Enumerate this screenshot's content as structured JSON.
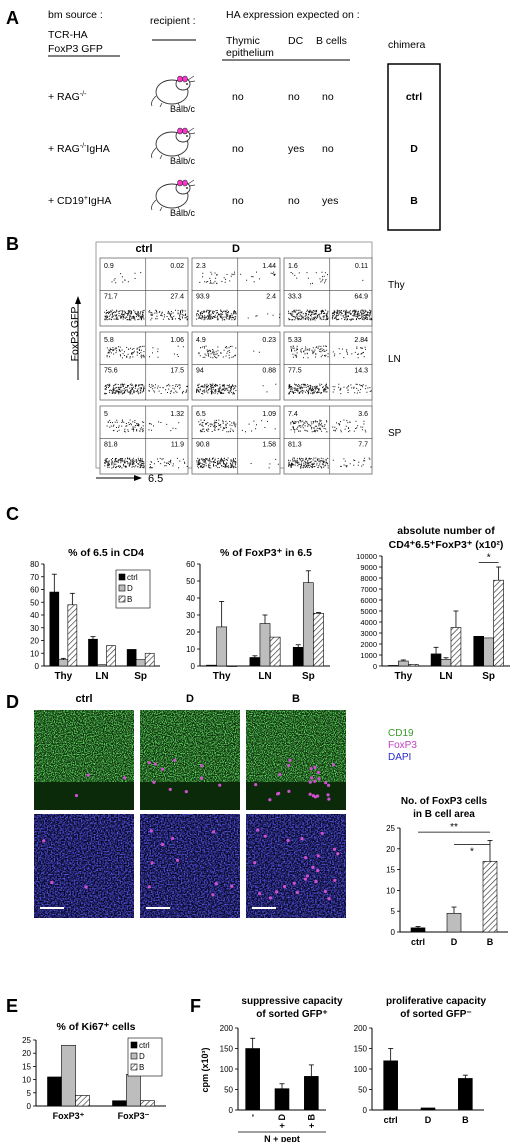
{
  "panels": {
    "a": "A",
    "b": "B",
    "c": "C",
    "d": "D",
    "e": "E",
    "f": "F"
  },
  "panel_a": {
    "bm_source_label": "bm source :",
    "recipient_label": "recipient :",
    "ha_label": "HA expression expected on :",
    "tcr_label_line1": "TCR-HA",
    "tcr_label_line2": "FoxP3 GFP",
    "col_thymic_line1": "Thymic",
    "col_thymic_line2": "epithelium",
    "col_dc": "DC",
    "col_bcells": "B cells",
    "col_chimera": "chimera",
    "rows": [
      {
        "source": "+ RAG",
        "sup": "-/-",
        "sub": "",
        "recipient": "Balb/c",
        "thymic": "no",
        "dc": "no",
        "b": "no",
        "chimera": "ctrl"
      },
      {
        "source": "+ RAG",
        "sup": "-/-",
        "sub": "IgHA",
        "recipient": "Balb/c",
        "thymic": "no",
        "dc": "yes",
        "b": "no",
        "chimera": "D"
      },
      {
        "source": "+ CD19",
        "sup": "+",
        "sub": "IgHA",
        "recipient": "Balb/c",
        "thymic": "no",
        "dc": "no",
        "b": "yes",
        "chimera": "B"
      }
    ]
  },
  "panel_b": {
    "columns": [
      "ctrl",
      "D",
      "B"
    ],
    "rows": [
      "Thy",
      "LN",
      "SP"
    ],
    "y_label": "FoxP3 GFP",
    "x_label": "6.5",
    "quadrants": [
      [
        [
          "0.9",
          "0.02",
          "71.7",
          "27.4"
        ],
        [
          "2.3",
          "1.44",
          "93.9",
          "2.4"
        ],
        [
          "1.6",
          "0.11",
          "33.3",
          "64.9"
        ]
      ],
      [
        [
          "5.8",
          "1.06",
          "75.6",
          "17.5"
        ],
        [
          "4.9",
          "0.23",
          "94",
          "0.88"
        ],
        [
          "5.33",
          "2.84",
          "77.5",
          "14.3"
        ]
      ],
      [
        [
          "5",
          "1.32",
          "81.8",
          "11.9"
        ],
        [
          "6.5",
          "1.09",
          "90.8",
          "1.58"
        ],
        [
          "7.4",
          "3.6",
          "81.3",
          "7.7"
        ]
      ]
    ]
  },
  "chart_data": [
    {
      "type": "bar",
      "title": "% of 6.5 in CD4",
      "categories": [
        "Thy",
        "LN",
        "Sp"
      ],
      "series": [
        {
          "name": "ctrl",
          "values": [
            58,
            21,
            13
          ],
          "errors": [
            14,
            2,
            0
          ]
        },
        {
          "name": "D",
          "values": [
            5,
            1,
            5
          ],
          "errors": [
            1,
            0,
            0
          ]
        },
        {
          "name": "B",
          "values": [
            48,
            16,
            10
          ],
          "errors": [
            9,
            0,
            0
          ]
        }
      ],
      "ylim": [
        0,
        80
      ],
      "yticks": [
        "0",
        "10",
        "20",
        "30",
        "40",
        "50",
        "60",
        "70",
        "80"
      ]
    },
    {
      "type": "bar",
      "title": "% of FoxP3⁺ in 6.5",
      "categories": [
        "Thy",
        "LN",
        "Sp"
      ],
      "series": [
        {
          "name": "ctrl",
          "values": [
            0.5,
            5,
            11
          ],
          "errors": [
            0,
            1,
            1.5
          ]
        },
        {
          "name": "D",
          "values": [
            23,
            25,
            49
          ],
          "errors": [
            15,
            5,
            7
          ]
        },
        {
          "name": "B",
          "values": [
            0,
            17,
            31
          ],
          "errors": [
            0,
            0,
            0.5
          ]
        }
      ],
      "ylim": [
        0,
        60
      ],
      "yticks": [
        "0",
        "10",
        "20",
        "30",
        "40",
        "50",
        "60"
      ]
    },
    {
      "type": "bar",
      "title_line1": "absolute number of",
      "title_line2": "CD4⁺6.5⁺FoxP3⁺ (x10²)",
      "categories": [
        "Thy",
        "LN",
        "Sp"
      ],
      "series": [
        {
          "name": "ctrl",
          "values": [
            50,
            1100,
            2700
          ],
          "errors": [
            0,
            600,
            0
          ]
        },
        {
          "name": "D",
          "values": [
            450,
            600,
            2550
          ],
          "errors": [
            100,
            150,
            0
          ]
        },
        {
          "name": "B",
          "values": [
            150,
            3500,
            7800
          ],
          "errors": [
            0,
            1500,
            1200
          ]
        }
      ],
      "ylim": [
        0,
        10000
      ],
      "yticks": [
        "0",
        "1000",
        "2000",
        "3000",
        "4000",
        "5000",
        "6000",
        "7000",
        "8000",
        "9000",
        "10000"
      ],
      "annotation": "*"
    },
    {
      "type": "bar",
      "title_line1": "No. of FoxP3 cells",
      "title_line2": "in B cell area",
      "categories": [
        "ctrl",
        "D",
        "B"
      ],
      "values": [
        1,
        4.5,
        17
      ],
      "errors": [
        0.3,
        1.5,
        5
      ],
      "ylim": [
        0,
        25
      ],
      "yticks": [
        "0",
        "5",
        "10",
        "15",
        "20",
        "25"
      ],
      "annotations": [
        "**",
        "*"
      ]
    },
    {
      "type": "bar",
      "title": "% of Ki67⁺ cells",
      "categories": [
        "FoxP3⁺",
        "FoxP3⁻"
      ],
      "series": [
        {
          "name": "ctrl",
          "values": [
            11,
            2
          ]
        },
        {
          "name": "D",
          "values": [
            23,
            12
          ]
        },
        {
          "name": "B",
          "values": [
            4,
            2
          ]
        }
      ],
      "ylim": [
        0,
        25
      ],
      "yticks": [
        "0",
        "5",
        "10",
        "15",
        "20",
        "25"
      ]
    },
    {
      "type": "bar",
      "title_line1": "suppressive capacity",
      "title_line2": "of sorted GFP⁺",
      "ylabel": "cpm (x10³)",
      "categories": [
        "-",
        "+ D",
        "+ B"
      ],
      "values": [
        150,
        52,
        82
      ],
      "errors": [
        25,
        12,
        28
      ],
      "ylim": [
        0,
        200
      ],
      "yticks": [
        "0",
        "50",
        "100",
        "150",
        "200"
      ],
      "xnote": "N + pept"
    },
    {
      "type": "bar",
      "title_line1": "proliferative capacity",
      "title_line2": "of sorted GFP⁻",
      "categories": [
        "ctrl",
        "D",
        "B"
      ],
      "values": [
        120,
        5,
        77
      ],
      "errors": [
        30,
        0,
        8
      ],
      "ylim": [
        0,
        200
      ],
      "yticks": [
        "0",
        "50",
        "100",
        "150",
        "200"
      ]
    }
  ],
  "panel_d": {
    "columns": [
      "ctrl",
      "D",
      "B"
    ],
    "legend": [
      {
        "label": "CD19",
        "color": "#3a9a2a"
      },
      {
        "label": "FoxP3",
        "color": "#c040c0"
      },
      {
        "label": "DAPI",
        "color": "#2a2ad0"
      }
    ]
  },
  "legend": {
    "ctrl": "ctrl",
    "D": "D",
    "B": "B"
  },
  "colors": {
    "ctrl": "#000000",
    "D": "#bdbdbd",
    "B": "hatched"
  }
}
